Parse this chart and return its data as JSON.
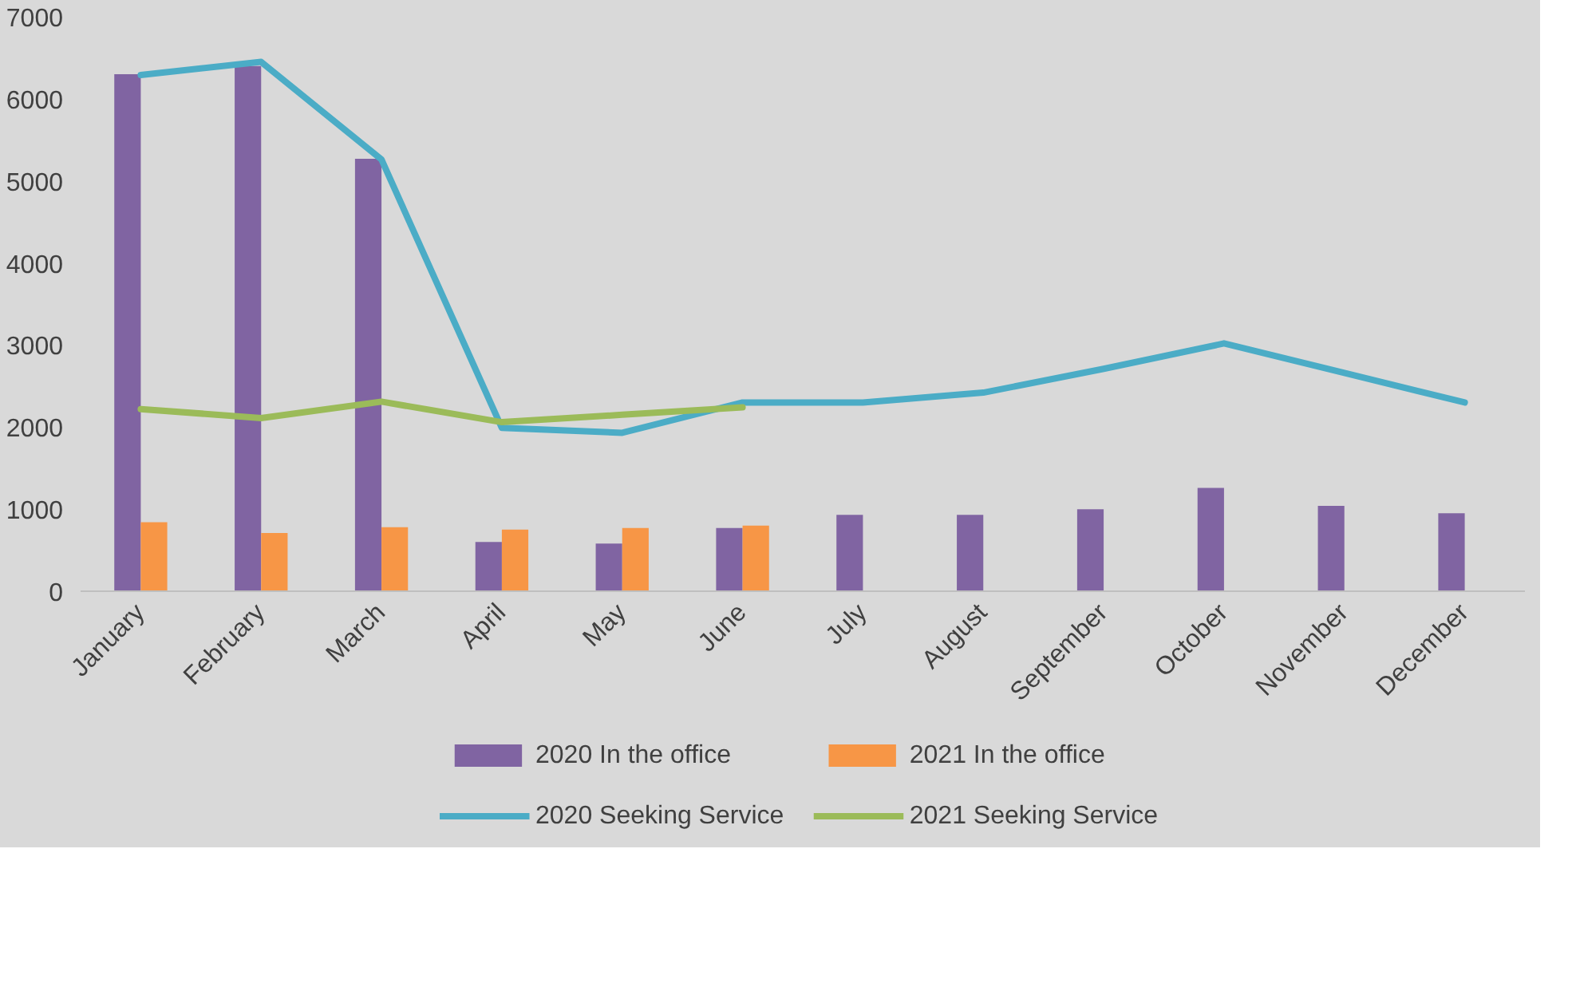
{
  "chart_data": {
    "type": "bar",
    "categories": [
      "January",
      "February",
      "March",
      "April",
      "May",
      "June",
      "July",
      "August",
      "September",
      "October",
      "November",
      "December"
    ],
    "series": [
      {
        "name": "2020 In the office",
        "color": "#8064a2",
        "values": [
          6300,
          6400,
          5270,
          600,
          580,
          770,
          930,
          930,
          1000,
          1260,
          1040,
          950
        ]
      },
      {
        "name": "2021 In the office",
        "color": "#f79646",
        "values": [
          840,
          710,
          780,
          750,
          770,
          800,
          null,
          null,
          null,
          null,
          null,
          null
        ]
      },
      {
        "name": "2020 Seeking Service",
        "type": "line",
        "color": "#4bacc6",
        "values": [
          6290,
          6450,
          5260,
          1990,
          1930,
          2300,
          2300,
          2420,
          2710,
          3020,
          2660,
          2300
        ]
      },
      {
        "name": "2021 Seeking Service",
        "type": "line",
        "color": "#9bbb59",
        "values": [
          2220,
          2110,
          2310,
          2060,
          2150,
          2240,
          null,
          null,
          null,
          null,
          null,
          null
        ]
      }
    ],
    "ylim": [
      0,
      7000
    ],
    "yticks": [
      0,
      1000,
      2000,
      3000,
      4000,
      5000,
      6000,
      7000
    ],
    "grid": false,
    "legend": "bottom"
  }
}
